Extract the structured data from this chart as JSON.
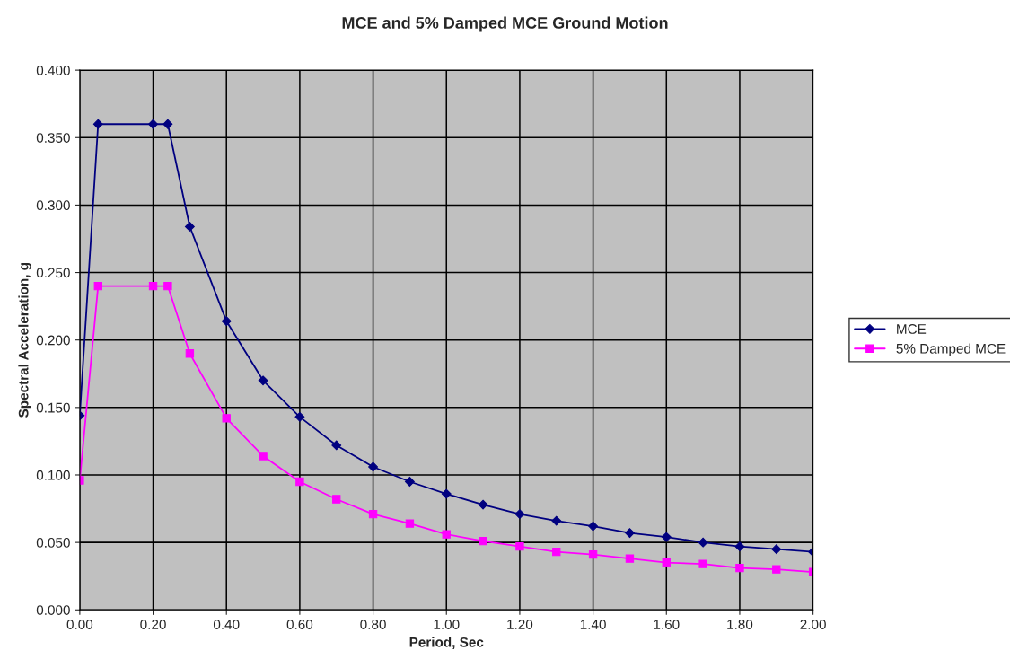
{
  "chart_data": {
    "type": "line",
    "title": "MCE and 5% Damped MCE Ground Motion",
    "xlabel": "Period, Sec",
    "ylabel": "Spectral Acceleration, g",
    "x": [
      0,
      0.05,
      0.2,
      0.24,
      0.3,
      0.4,
      0.5,
      0.6,
      0.7,
      0.8,
      0.9,
      1.0,
      1.1,
      1.2,
      1.3,
      1.4,
      1.5,
      1.6,
      1.7,
      1.8,
      1.9,
      2.0
    ],
    "series": [
      {
        "name": "MCE",
        "color": "#000080",
        "marker": "diamond",
        "values": [
          0.144,
          0.36,
          0.36,
          0.36,
          0.284,
          0.214,
          0.17,
          0.143,
          0.122,
          0.106,
          0.095,
          0.086,
          0.078,
          0.071,
          0.066,
          0.062,
          0.057,
          0.054,
          0.05,
          0.047,
          0.045,
          0.043
        ]
      },
      {
        "name": "5% Damped MCE",
        "color": "#ff00ff",
        "marker": "square",
        "values": [
          0.096,
          0.24,
          0.24,
          0.24,
          0.19,
          0.142,
          0.114,
          0.095,
          0.082,
          0.071,
          0.064,
          0.056,
          0.051,
          0.047,
          0.043,
          0.041,
          0.038,
          0.035,
          0.034,
          0.031,
          0.03,
          0.028
        ]
      }
    ],
    "xlim": [
      0,
      2
    ],
    "ylim": [
      0,
      0.4
    ],
    "xticks": [
      {
        "value": 0,
        "label": "0.00"
      },
      {
        "value": 0.2,
        "label": "0.20"
      },
      {
        "value": 0.4,
        "label": "0.40"
      },
      {
        "value": 0.6,
        "label": "0.60"
      },
      {
        "value": 0.8,
        "label": "0.80"
      },
      {
        "value": 1.0,
        "label": "1.00"
      },
      {
        "value": 1.2,
        "label": "1.20"
      },
      {
        "value": 1.4,
        "label": "1.40"
      },
      {
        "value": 1.6,
        "label": "1.60"
      },
      {
        "value": 1.8,
        "label": "1.80"
      },
      {
        "value": 2.0,
        "label": "2.00"
      }
    ],
    "yticks": [
      {
        "value": 0,
        "label": "0.000"
      },
      {
        "value": 0.05,
        "label": "0.050"
      },
      {
        "value": 0.1,
        "label": "0.100"
      },
      {
        "value": 0.15,
        "label": "0.150"
      },
      {
        "value": 0.2,
        "label": "0.200"
      },
      {
        "value": 0.25,
        "label": "0.250"
      },
      {
        "value": 0.3,
        "label": "0.300"
      },
      {
        "value": 0.35,
        "label": "0.350"
      },
      {
        "value": 0.4,
        "label": "0.400"
      }
    ],
    "grid": true,
    "legend": "right",
    "line_style": "solid"
  }
}
